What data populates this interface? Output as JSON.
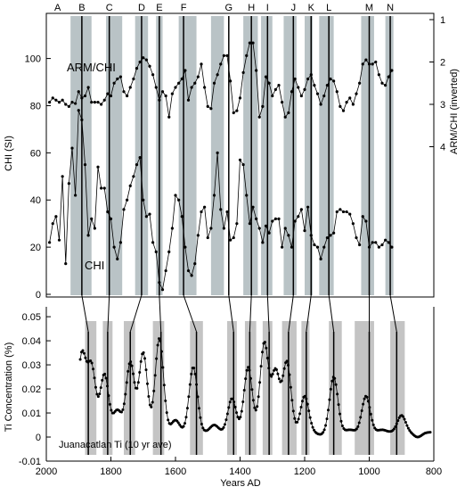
{
  "chart_data": {
    "type": "line",
    "xlabel": "Years AD",
    "x_ticks": [
      "2000",
      "1800",
      "1600",
      "1400",
      "1200",
      "1000",
      "800"
    ],
    "xlim": [
      2000,
      800
    ],
    "event_labels": [
      "A",
      "B",
      "C",
      "D",
      "E",
      "F",
      "G",
      "H",
      "I",
      "J",
      "K",
      "L",
      "M",
      "N"
    ],
    "event_label_years": [
      1965,
      1890,
      1805,
      1705,
      1650,
      1575,
      1435,
      1365,
      1315,
      1235,
      1180,
      1125,
      1000,
      935
    ],
    "top_panel": {
      "ylabel_left": "CHI (SI)",
      "ylabel_right": "ARM/CHI (inverted)",
      "left_ticks": [
        "0",
        "20",
        "40",
        "60",
        "80",
        "100"
      ],
      "ylim_left": [
        0,
        118
      ],
      "right_ticks": [
        "1",
        "2",
        "3",
        "4"
      ],
      "right_axis_range": [
        1,
        5
      ],
      "shaded_bands": [
        [
          1925,
          1860
        ],
        [
          1815,
          1765
        ],
        [
          1725,
          1685
        ],
        [
          1660,
          1640
        ],
        [
          1590,
          1535
        ],
        [
          1490,
          1450
        ],
        [
          1390,
          1345
        ],
        [
          1335,
          1300
        ],
        [
          1265,
          1225
        ],
        [
          1200,
          1175
        ],
        [
          1155,
          1110
        ],
        [
          1025,
          985
        ],
        [
          950,
          925
        ]
      ],
      "event_lines": [
        1890,
        1805,
        1705,
        1650,
        1575,
        1435,
        1365,
        1315,
        1235,
        1180,
        1125,
        1000,
        935
      ],
      "series": [
        {
          "name": "ARM/CHI",
          "x": [
            1990,
            1980,
            1970,
            1960,
            1950,
            1940,
            1930,
            1920,
            1910,
            1900,
            1890,
            1880,
            1870,
            1860,
            1850,
            1840,
            1830,
            1820,
            1810,
            1800,
            1790,
            1780,
            1770,
            1760,
            1750,
            1740,
            1730,
            1720,
            1710,
            1700,
            1690,
            1680,
            1670,
            1660,
            1650,
            1640,
            1630,
            1620,
            1610,
            1600,
            1590,
            1580,
            1570,
            1560,
            1550,
            1540,
            1530,
            1520,
            1510,
            1500,
            1490,
            1480,
            1470,
            1460,
            1450,
            1440,
            1430,
            1420,
            1410,
            1400,
            1390,
            1380,
            1370,
            1360,
            1350,
            1340,
            1330,
            1320,
            1310,
            1300,
            1290,
            1280,
            1270,
            1260,
            1250,
            1240,
            1230,
            1220,
            1210,
            1200,
            1190,
            1180,
            1170,
            1160,
            1150,
            1140,
            1130,
            1120,
            1110,
            1100,
            1090,
            1080,
            1070,
            1060,
            1050,
            1040,
            1030,
            1020,
            1010,
            1000,
            990,
            980,
            970,
            960,
            950,
            940,
            930
          ],
          "y": [
            2.95,
            2.85,
            2.9,
            2.95,
            2.9,
            3.0,
            3.05,
            2.95,
            2.98,
            2.7,
            2.85,
            2.8,
            2.6,
            2.95,
            2.95,
            2.95,
            3.0,
            2.9,
            2.75,
            2.8,
            2.5,
            2.4,
            2.35,
            2.7,
            2.8,
            2.6,
            2.4,
            2.15,
            2.0,
            1.9,
            1.95,
            2.1,
            2.3,
            2.6,
            2.9,
            2.7,
            2.8,
            3.3,
            2.75,
            2.6,
            2.5,
            2.4,
            2.2,
            2.9,
            2.6,
            2.5,
            2.35,
            2.05,
            2.6,
            3.05,
            3.1,
            2.5,
            2.3,
            2.05,
            1.85,
            1.85,
            2.45,
            3.2,
            3.15,
            2.85,
            2.25,
            1.85,
            1.55,
            1.55,
            2.2,
            3.3,
            3.05,
            2.35,
            2.5,
            2.8,
            2.65,
            2.55,
            2.95,
            3.3,
            3.2,
            2.7,
            2.4,
            2.6,
            2.8,
            2.65,
            2.4,
            2.3,
            2.55,
            2.75,
            3.0,
            2.8,
            2.55,
            2.4,
            2.45,
            2.7,
            3.05,
            3.15,
            2.95,
            2.85,
            3.0,
            2.75,
            2.5,
            2.05,
            1.95,
            2.05,
            2.05,
            2.0,
            2.3,
            2.5,
            2.55,
            2.35,
            2.2
          ]
        },
        {
          "name": "CHI",
          "x": [
            1990,
            1980,
            1970,
            1960,
            1950,
            1940,
            1930,
            1920,
            1910,
            1900,
            1890,
            1880,
            1870,
            1860,
            1850,
            1840,
            1830,
            1820,
            1810,
            1800,
            1790,
            1780,
            1770,
            1760,
            1750,
            1740,
            1730,
            1720,
            1710,
            1700,
            1690,
            1680,
            1670,
            1660,
            1650,
            1640,
            1630,
            1620,
            1610,
            1600,
            1590,
            1580,
            1570,
            1560,
            1550,
            1540,
            1530,
            1520,
            1510,
            1500,
            1490,
            1480,
            1470,
            1460,
            1450,
            1440,
            1430,
            1420,
            1410,
            1400,
            1390,
            1380,
            1370,
            1360,
            1350,
            1340,
            1330,
            1320,
            1310,
            1300,
            1290,
            1280,
            1270,
            1260,
            1250,
            1240,
            1230,
            1220,
            1210,
            1200,
            1190,
            1180,
            1170,
            1160,
            1150,
            1140,
            1130,
            1120,
            1110,
            1100,
            1090,
            1080,
            1070,
            1060,
            1050,
            1040,
            1030,
            1020,
            1010,
            1000,
            990,
            980,
            970,
            960,
            950,
            940,
            930
          ],
          "y": [
            22,
            30,
            33,
            23,
            50,
            13,
            47,
            62,
            42,
            78,
            74,
            55,
            25,
            32,
            28,
            54,
            45,
            45,
            35,
            32,
            20,
            15,
            22,
            36,
            40,
            46,
            50,
            55,
            58,
            40,
            33,
            34,
            22,
            18,
            5,
            2,
            10,
            18,
            28,
            42,
            40,
            33,
            20,
            10,
            8,
            13,
            25,
            35,
            37,
            24,
            28,
            42,
            60,
            36,
            28,
            35,
            23,
            24,
            30,
            57,
            55,
            42,
            30,
            37,
            32,
            28,
            22,
            29,
            26,
            31,
            32,
            32,
            20,
            28,
            25,
            20,
            31,
            33,
            36,
            27,
            37,
            25,
            21,
            20,
            15,
            20,
            24,
            25,
            26,
            35,
            36,
            35,
            35,
            34,
            30,
            24,
            21,
            33,
            31,
            20,
            22,
            22,
            20,
            21,
            23,
            22,
            20
          ]
        }
      ]
    },
    "bottom_panel": {
      "ylabel": "Ti Concentration (%)",
      "y_ticks": [
        "-0.01",
        "0",
        "0.01",
        "0.02",
        "0.03",
        "0.04",
        "0.05"
      ],
      "ylim": [
        -0.01,
        0.053
      ],
      "series_label": "Juanacatlan Ti (10 yr ave)",
      "shaded_bands": [
        [
          1880,
          1845
        ],
        [
          1825,
          1795
        ],
        [
          1760,
          1725
        ],
        [
          1670,
          1635
        ],
        [
          1555,
          1515
        ],
        [
          1440,
          1410
        ],
        [
          1385,
          1350
        ],
        [
          1330,
          1300
        ],
        [
          1270,
          1225
        ],
        [
          1210,
          1185
        ],
        [
          1125,
          1085
        ],
        [
          1045,
          985
        ],
        [
          935,
          890
        ]
      ],
      "event_lines": [
        1870,
        1810,
        1740,
        1645,
        1535,
        1420,
        1370,
        1310,
        1250,
        1195,
        1110,
        1000,
        915
      ]
    },
    "connector_pairs": [
      [
        1890,
        1870
      ],
      [
        1805,
        1810
      ],
      [
        1705,
        1740
      ],
      [
        1650,
        1645
      ],
      [
        1575,
        1535
      ],
      [
        1435,
        1420
      ],
      [
        1365,
        1370
      ],
      [
        1315,
        1310
      ],
      [
        1235,
        1250
      ],
      [
        1180,
        1195
      ],
      [
        1125,
        1110
      ],
      [
        1000,
        1000
      ],
      [
        935,
        915
      ]
    ],
    "colors": {
      "band": "#b9c3c6",
      "band_bottom": "#c4c4c4",
      "line": "#000000"
    }
  }
}
